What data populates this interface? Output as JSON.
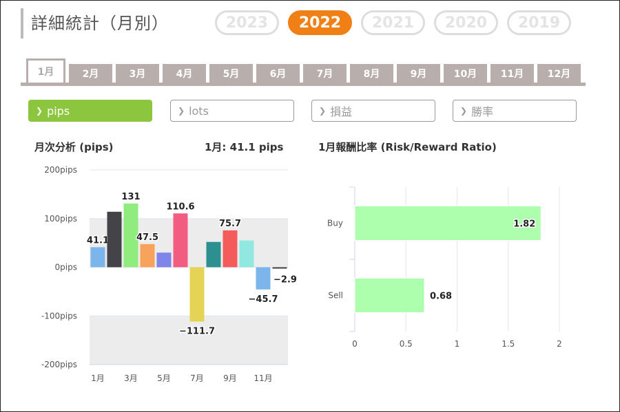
{
  "title": "詳細統計（月別）",
  "years": [
    "2023",
    "2022",
    "2021",
    "2020",
    "2019"
  ],
  "active_year": "2022",
  "months": [
    "1月",
    "2月",
    "3月",
    "4月",
    "5月",
    "6月",
    "7月",
    "8月",
    "9月",
    "10月",
    "11月",
    "12月"
  ],
  "active_month": "1月",
  "metrics": [
    {
      "label": "pips",
      "active": true
    },
    {
      "label": "lots",
      "active": false
    },
    {
      "label": "損益",
      "active": false
    },
    {
      "label": "勝率",
      "active": false
    }
  ],
  "colors": {
    "accent_orange": "#f08016",
    "active_green": "#8cc63f",
    "tab_gray": "#b8aeac",
    "rr_bar": "#adffad"
  },
  "chart_data": [
    {
      "type": "bar",
      "title": "月次分析 (pips)",
      "subtitle": "1月:  41.1 pips",
      "categories": [
        "1月",
        "2月",
        "3月",
        "4月",
        "5月",
        "6月",
        "7月",
        "8月",
        "9月",
        "10月",
        "11月",
        "12月"
      ],
      "x_tick_labels": [
        "1月",
        "3月",
        "5月",
        "7月",
        "9月",
        "11月"
      ],
      "values": [
        41.1,
        114,
        131,
        47.5,
        30,
        110.6,
        -111.7,
        52,
        75.7,
        55,
        -45.7,
        -2.9
      ],
      "data_labels": [
        "41.1",
        "",
        "131",
        "47.5",
        "",
        "110.6",
        "−111.7",
        "",
        "75.7",
        "",
        "−45.7",
        "−2.9"
      ],
      "bar_colors": [
        "#7cb5ec",
        "#434348",
        "#90ed7d",
        "#f7a35c",
        "#8085e9",
        "#f15c80",
        "#e4d354",
        "#2b908f",
        "#f45b5b",
        "#91e8e1",
        "#7cb5ec",
        "#434348"
      ],
      "y_ticks": [
        "200pips",
        "100pips",
        "0pips",
        "-100pips",
        "-200pips"
      ],
      "ylim": [
        -200,
        200
      ],
      "grid": true
    },
    {
      "type": "bar",
      "orientation": "horizontal",
      "title": "1月報酬比率 (Risk/Reward Ratio)",
      "categories": [
        "Buy",
        "Sell"
      ],
      "values": [
        1.82,
        0.68
      ],
      "data_labels": [
        "1.82",
        "0.68"
      ],
      "x_ticks": [
        "0",
        "0.5",
        "1",
        "1.5",
        "2"
      ],
      "xlim": [
        0,
        2
      ],
      "grid": true
    }
  ]
}
